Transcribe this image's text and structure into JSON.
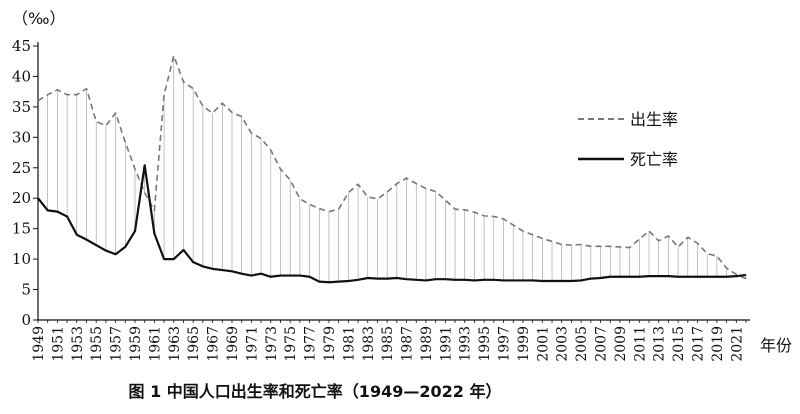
{
  "chart_data": {
    "type": "line",
    "title": "图 1 中国人口出生率和死亡率（1949—2022 年）",
    "ylabel": "（‰）",
    "xlabel": "年份",
    "ylim": [
      0,
      45
    ],
    "yticks": [
      0,
      5,
      10,
      15,
      20,
      25,
      30,
      35,
      40,
      45
    ],
    "xlim": [
      1949,
      2022
    ],
    "xticks": [
      1949,
      1951,
      1953,
      1955,
      1957,
      1959,
      1961,
      1963,
      1965,
      1967,
      1969,
      1971,
      1973,
      1975,
      1977,
      1979,
      1981,
      1983,
      1985,
      1987,
      1989,
      1991,
      1993,
      1995,
      1997,
      1999,
      2001,
      2003,
      2005,
      2007,
      2009,
      2011,
      2013,
      2015,
      2017,
      2019,
      2021
    ],
    "legend_position": "right",
    "grid": false,
    "x": [
      1949,
      1950,
      1951,
      1952,
      1953,
      1954,
      1955,
      1956,
      1957,
      1958,
      1959,
      1960,
      1961,
      1962,
      1963,
      1964,
      1965,
      1966,
      1967,
      1968,
      1969,
      1970,
      1971,
      1972,
      1973,
      1974,
      1975,
      1976,
      1977,
      1978,
      1979,
      1980,
      1981,
      1982,
      1983,
      1984,
      1985,
      1986,
      1987,
      1988,
      1989,
      1990,
      1991,
      1992,
      1993,
      1994,
      1995,
      1996,
      1997,
      1998,
      1999,
      2000,
      2001,
      2002,
      2003,
      2004,
      2005,
      2006,
      2007,
      2008,
      2009,
      2010,
      2011,
      2012,
      2013,
      2014,
      2015,
      2016,
      2017,
      2018,
      2019,
      2020,
      2021,
      2022
    ],
    "series": [
      {
        "name": "出生率",
        "style": "dashed",
        "color": "#777777",
        "values": [
          36.0,
          37.0,
          37.8,
          37.0,
          37.0,
          38.0,
          32.6,
          31.9,
          34.0,
          29.2,
          24.8,
          20.9,
          18.0,
          37.0,
          43.4,
          39.1,
          38.0,
          35.1,
          34.0,
          35.6,
          34.1,
          33.4,
          30.7,
          29.8,
          27.9,
          24.8,
          23.0,
          19.9,
          19.0,
          18.3,
          17.8,
          18.2,
          20.9,
          22.3,
          20.2,
          19.9,
          21.0,
          22.4,
          23.3,
          22.4,
          21.6,
          21.1,
          19.7,
          18.2,
          18.1,
          17.7,
          17.1,
          17.0,
          16.6,
          15.6,
          14.6,
          14.0,
          13.4,
          12.9,
          12.4,
          12.3,
          12.4,
          12.1,
          12.1,
          12.1,
          12.0,
          11.9,
          13.3,
          14.6,
          13.0,
          13.8,
          12.0,
          13.6,
          12.6,
          10.9,
          10.5,
          8.5,
          7.5,
          6.8
        ]
      },
      {
        "name": "死亡率",
        "style": "solid",
        "color": "#111111",
        "values": [
          20.0,
          18.0,
          17.8,
          17.0,
          14.0,
          13.2,
          12.3,
          11.4,
          10.8,
          12.0,
          14.6,
          25.4,
          14.2,
          10.0,
          10.0,
          11.5,
          9.5,
          8.8,
          8.4,
          8.2,
          8.0,
          7.6,
          7.3,
          7.6,
          7.1,
          7.3,
          7.3,
          7.3,
          7.1,
          6.3,
          6.2,
          6.3,
          6.4,
          6.6,
          6.9,
          6.8,
          6.8,
          6.9,
          6.7,
          6.6,
          6.5,
          6.7,
          6.7,
          6.6,
          6.6,
          6.5,
          6.6,
          6.6,
          6.5,
          6.5,
          6.5,
          6.5,
          6.4,
          6.4,
          6.4,
          6.4,
          6.5,
          6.8,
          6.9,
          7.1,
          7.1,
          7.1,
          7.1,
          7.2,
          7.2,
          7.2,
          7.1,
          7.1,
          7.1,
          7.1,
          7.1,
          7.1,
          7.2,
          7.4
        ]
      }
    ]
  }
}
